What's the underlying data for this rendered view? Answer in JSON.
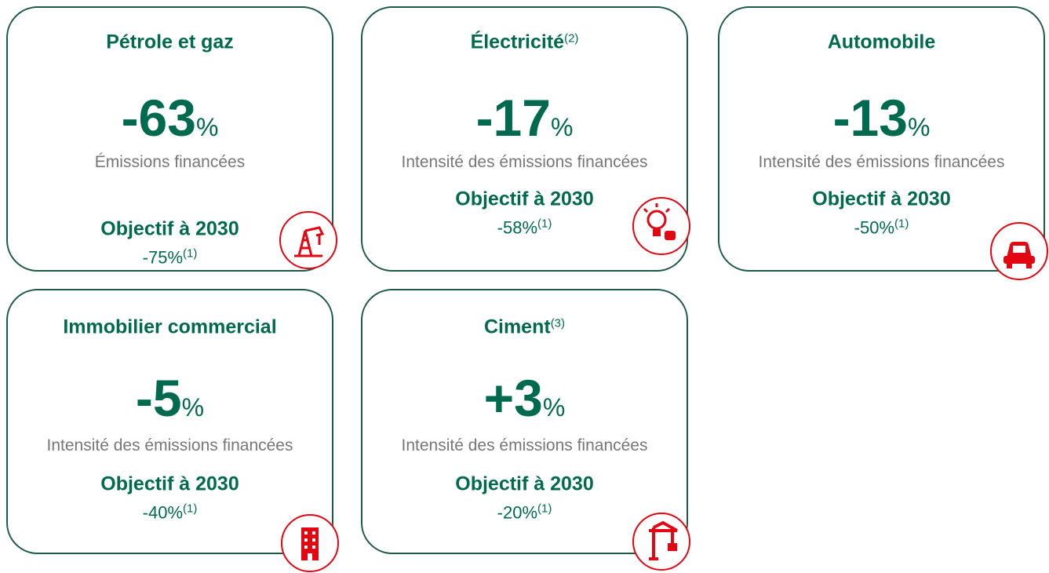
{
  "cards": [
    {
      "title": "Pétrole et gaz",
      "value": "-63",
      "unit": "%",
      "metric": "Émissions financées",
      "target_label": "Objectif à 2030",
      "target": "-75%",
      "target_note": "(1)"
    },
    {
      "title": "Électricité",
      "title_note": "(2)",
      "value": "-17",
      "unit": "%",
      "metric": "Intensité des émissions financées",
      "target_label": "Objectif à 2030",
      "target": "-58%",
      "target_note": "(1)"
    },
    {
      "title": "Automobile",
      "value": "-13",
      "unit": "%",
      "metric": "Intensité des émissions financées",
      "target_label": "Objectif à 2030",
      "target": "-50%",
      "target_note": "(1)"
    },
    {
      "title": "Immobilier commercial",
      "value": "-5",
      "unit": "%",
      "metric": "Intensité des émissions financées",
      "target_label": "Objectif à 2030",
      "target": "-40%",
      "target_note": "(1)"
    },
    {
      "title": "Ciment",
      "title_note": "(3)",
      "value": "+3",
      "unit": "%",
      "metric": "Intensité des émissions financées",
      "target_label": "Objectif à 2030",
      "target": "-20%",
      "target_note": "(1)"
    }
  ]
}
